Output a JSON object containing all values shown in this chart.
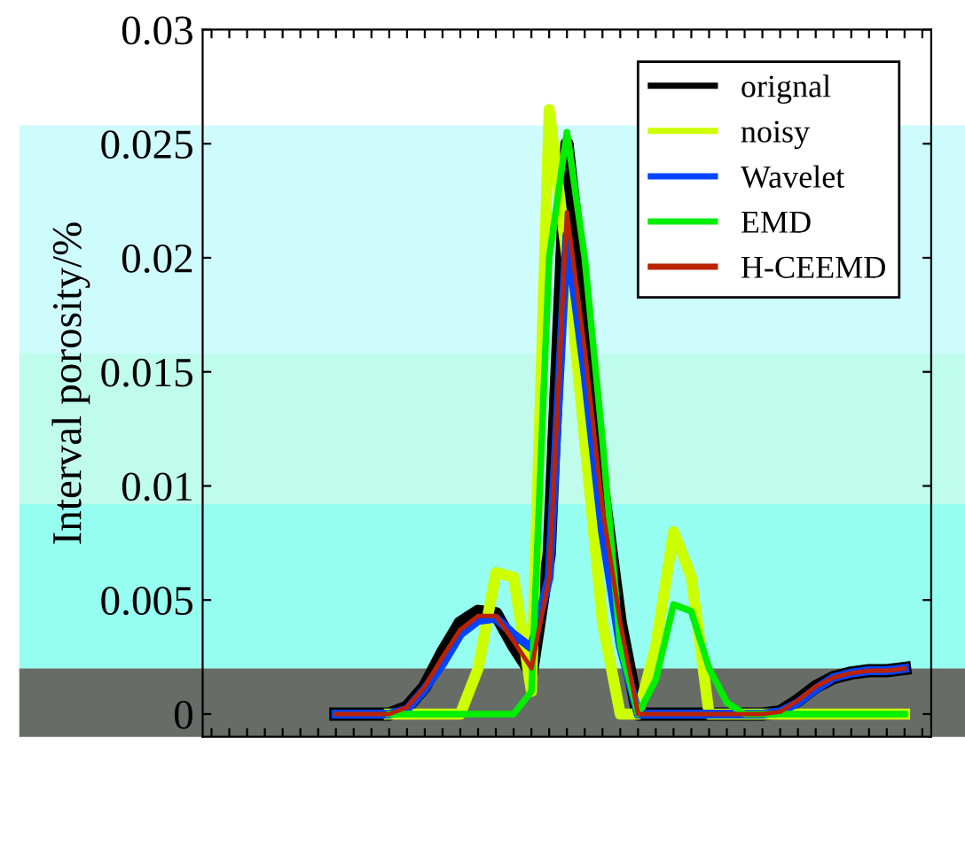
{
  "chart_data": {
    "type": "line",
    "ylabel": "Interval porosity/%",
    "categories": [
      null,
      null,
      null,
      null,
      null,
      null,
      null,
      null,
      null,
      null,
      null,
      null,
      null,
      null,
      null,
      null,
      null,
      null,
      null,
      null,
      null,
      null,
      null,
      null,
      null,
      null,
      null,
      null,
      null,
      null,
      null,
      null,
      null,
      null,
      null,
      null,
      null,
      null,
      null,
      null,
      null
    ],
    "series": [
      {
        "name": "orignal",
        "color": "#000000",
        "values": [
          null,
          null,
          null,
          null,
          null,
          null,
          null,
          0,
          0,
          0,
          0,
          0.0003,
          0.0012,
          0.0027,
          0.004,
          0.0045,
          0.0044,
          0.003,
          0.0018,
          0.007,
          0.025,
          0.018,
          0.01,
          0.004,
          0,
          0,
          0,
          0,
          0,
          0,
          0,
          0,
          0.0001,
          0.0006,
          0.0012,
          0.0016,
          0.0018,
          0.0019,
          0.0019,
          0.002,
          null
        ]
      },
      {
        "name": "noisy",
        "color": "#ccff00",
        "values": [
          null,
          null,
          null,
          null,
          null,
          null,
          null,
          null,
          null,
          null,
          0,
          0,
          0,
          0,
          0,
          0.002,
          0.0062,
          0.006,
          0.001,
          0.0265,
          0.02,
          0.012,
          0.004,
          0,
          0,
          0.003,
          0.008,
          0.006,
          0,
          0,
          0,
          0,
          0,
          0,
          0,
          0,
          0,
          0,
          0,
          0,
          null
        ]
      },
      {
        "name": "Wavelet",
        "color": "#0044ff",
        "values": [
          null,
          null,
          null,
          null,
          null,
          null,
          null,
          0,
          0,
          0,
          0,
          0.0002,
          0.0011,
          0.0022,
          0.0035,
          0.0041,
          0.0042,
          0.0035,
          0.0029,
          0.006,
          0.021,
          0.015,
          0.008,
          0.003,
          0,
          0,
          0,
          0,
          0,
          0,
          0,
          0,
          0.0001,
          0.0005,
          0.0011,
          0.0016,
          0.0018,
          0.0019,
          0.0019,
          0.002,
          null
        ]
      },
      {
        "name": "EMD",
        "color": "#00ee00",
        "values": [
          null,
          null,
          null,
          null,
          null,
          null,
          null,
          null,
          null,
          null,
          0,
          0,
          0,
          0,
          0,
          0,
          0,
          0,
          0.001,
          0.02,
          0.0255,
          0.02,
          0.012,
          0.003,
          0,
          0.0015,
          0.0048,
          0.0045,
          0.002,
          0.0005,
          0,
          0,
          0,
          0,
          0,
          0,
          0,
          0,
          0,
          0,
          null
        ]
      },
      {
        "name": "H-CEEMD",
        "color": "#bb2200",
        "values": [
          null,
          null,
          null,
          null,
          null,
          null,
          null,
          0,
          0,
          0,
          0,
          0.0003,
          0.0012,
          0.0025,
          0.0037,
          0.0043,
          0.0043,
          0.0032,
          0.002,
          0.006,
          0.022,
          0.016,
          0.009,
          0.004,
          0,
          0,
          0,
          0,
          0,
          0,
          0,
          0,
          0.0001,
          0.0006,
          0.0012,
          0.0016,
          0.0018,
          0.0019,
          0.0019,
          0.002,
          null
        ]
      }
    ],
    "ylim": [
      -0.001,
      0.03
    ],
    "yticks": [
      0,
      0.005,
      0.01,
      0.015,
      0.02,
      0.025,
      0.03
    ],
    "tick_labels": "y",
    "legend": "top right",
    "grid": false,
    "bands": [
      {
        "axis": "y",
        "from": 0.0158,
        "to": 0.0258,
        "color": "#aefafa"
      },
      {
        "axis": "y",
        "from": 0.0092,
        "to": 0.0158,
        "color": "#96fae0"
      },
      {
        "axis": "y",
        "from": 0.002,
        "to": 0.0092,
        "color": "#50fde6"
      },
      {
        "axis": "y",
        "from": -0.001,
        "to": 0.002,
        "color": "#010a02"
      }
    ]
  }
}
